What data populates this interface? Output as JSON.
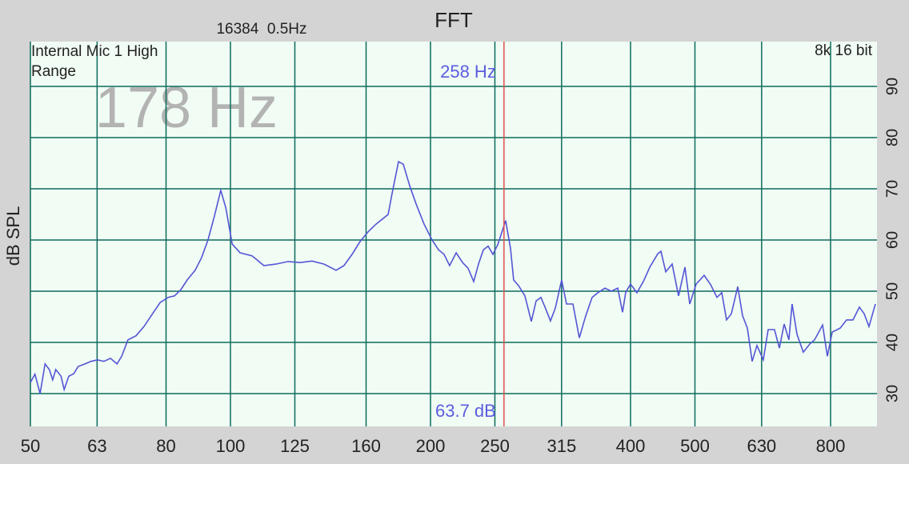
{
  "chart_data": {
    "type": "line",
    "title": "FFT",
    "subtitle": "16384  0.5Hz",
    "y_label": "dB SPL",
    "source_label": "Internal Mic 1 High Range",
    "format_label": "8k 16 bit",
    "peak_label": "178 Hz",
    "cursor": {
      "x": 258,
      "frequency_label": "258 Hz",
      "level_label": "63.7 dB",
      "color": "#e05050"
    },
    "color": "#5555d5",
    "grid": true,
    "xscale": "log",
    "xlim": [
      50,
      939.6
    ],
    "xticks": [
      50,
      63,
      80,
      100,
      125,
      160,
      200,
      250,
      315,
      400,
      500,
      630,
      800
    ],
    "ylim": [
      23.6,
      98.75
    ],
    "yticks": [
      30,
      40,
      50,
      60,
      70,
      80,
      90
    ],
    "x": [
      50,
      50.8,
      51.7,
      52.6,
      53.4,
      54.0,
      54.6,
      55.6,
      56.2,
      57.1,
      58.1,
      59.0,
      60.4,
      61.7,
      63.1,
      64.5,
      66.0,
      67.5,
      68.6,
      70.1,
      72.1,
      74.1,
      76.6,
      78.4,
      80.6,
      82.4,
      84.2,
      86.1,
      88.5,
      90.5,
      92.5,
      94.6,
      96.7,
      98.4,
      100.6,
      103.4,
      107.8,
      112.3,
      117.1,
      122.1,
      127.3,
      132.7,
      138.3,
      144.2,
      148.2,
      152.4,
      156.7,
      161.1,
      165.6,
      172.7,
      175.1,
      179.0,
      182.0,
      186.1,
      190.3,
      195.6,
      201.1,
      205.6,
      209.6,
      213.7,
      218.6,
      223.5,
      227.8,
      232.3,
      236.2,
      240.2,
      244.2,
      248.3,
      252.5,
      259.5,
      263.9,
      266.8,
      271.3,
      277.4,
      283.6,
      288.4,
      293.2,
      298.1,
      303.1,
      308.2,
      315.1,
      320.4,
      327.6,
      335.0,
      342.5,
      350.2,
      358.0,
      366.0,
      374.3,
      382.6,
      389.1,
      393.4,
      400,
      409.0,
      418.2,
      427.6,
      439.5,
      444.4,
      451.9,
      462.0,
      472.4,
      483.0,
      491.1,
      502.1,
      516.2,
      527.8,
      539.6,
      548.7,
      557.9,
      567.2,
      580.0,
      589.7,
      599.6,
      609.6,
      619.9,
      633.7,
      644.4,
      658.8,
      669.9,
      681.1,
      692.5,
      700.2,
      712.0,
      727.9,
      744.3,
      756.8,
      778.1,
      791.2,
      804.4,
      827.1,
      845.6,
      864.6,
      884.0,
      898.8,
      913.9,
      934.4
    ],
    "values": [
      32.2,
      33.8,
      30,
      35.8,
      34.7,
      32.7,
      34.7,
      33.4,
      30.8,
      33.4,
      33.9,
      35.3,
      35.8,
      36.3,
      36.6,
      36.3,
      36.9,
      35.8,
      37.3,
      40.5,
      41.3,
      43.1,
      45.9,
      47.8,
      48.8,
      49.1,
      50.3,
      52.2,
      54.1,
      56.6,
      60,
      64.7,
      69.7,
      66.3,
      59.2,
      57.5,
      56.9,
      55,
      55.3,
      55.8,
      55.6,
      55.9,
      55.3,
      54.1,
      55,
      57.2,
      59.7,
      61.6,
      63.1,
      65,
      69.1,
      75.3,
      74.8,
      70.6,
      67,
      63.1,
      60,
      58.1,
      57.2,
      55,
      57.5,
      55.6,
      54.5,
      51.9,
      55.3,
      58.1,
      58.8,
      57.2,
      59.1,
      63.8,
      58.4,
      52.2,
      51.1,
      49.1,
      44.1,
      48.1,
      48.8,
      46.6,
      44.2,
      46.7,
      52.2,
      47.5,
      47.5,
      40.9,
      45.2,
      48.8,
      49.8,
      50.6,
      50,
      50.6,
      45.9,
      49.8,
      51.4,
      49.7,
      51.9,
      54.7,
      57.3,
      57.8,
      53.8,
      55.3,
      49.1,
      54.7,
      47.5,
      51.4,
      53.1,
      51.3,
      48.8,
      49.7,
      44.4,
      45.6,
      50.9,
      45.2,
      42.8,
      36.3,
      39.4,
      36.6,
      42.5,
      42.5,
      38.9,
      43.6,
      40.5,
      47.5,
      41.6,
      38.1,
      39.7,
      40.5,
      43.4,
      37.3,
      42,
      42.8,
      44.4,
      44.4,
      46.9,
      45.6,
      43.1,
      47.5
    ]
  }
}
